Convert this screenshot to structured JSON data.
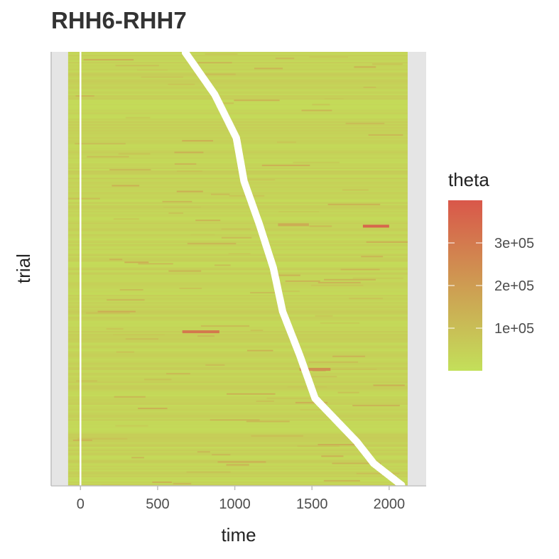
{
  "chart_data": {
    "type": "heatmap",
    "title": "RHH6-RHH7",
    "xlabel": "time",
    "ylabel": "trial",
    "xlim": [
      -190,
      2240
    ],
    "x_ticks": [
      0,
      500,
      1000,
      1500,
      2000
    ],
    "x_tick_labels": [
      "0",
      "500",
      "1000",
      "1500",
      "2000"
    ],
    "heatmap_x_range": [
      -80,
      2120
    ],
    "trial_count": 300,
    "reference_line_x": 0,
    "response_times": {
      "description_trial_order": "top to bottom",
      "trials": [
        1,
        30,
        60,
        90,
        120,
        150,
        180,
        210,
        240,
        270,
        285,
        300
      ],
      "time": [
        680,
        870,
        1010,
        1060,
        1160,
        1250,
        1310,
        1420,
        1520,
        1790,
        1900,
        2080
      ]
    },
    "color_scale": {
      "name": "theta",
      "low_color": "#c3e05a",
      "high_color": "#d9574a",
      "domain": [
        0,
        400000
      ],
      "breaks": [
        100000,
        200000,
        300000
      ],
      "break_labels": [
        "1e+05",
        "2e+05",
        "3e+05"
      ]
    },
    "notable_hotspots": [
      {
        "trial": 120,
        "time_start": 1280,
        "time_end": 1480,
        "theta": 160000
      },
      {
        "trial": 121,
        "time_start": 1830,
        "time_end": 2000,
        "theta": 390000
      },
      {
        "trial": 194,
        "time_start": 660,
        "time_end": 900,
        "theta": 330000
      },
      {
        "trial": 220,
        "time_start": 1420,
        "time_end": 1620,
        "theta": 250000
      }
    ],
    "grid": false,
    "legend_position": "right"
  }
}
